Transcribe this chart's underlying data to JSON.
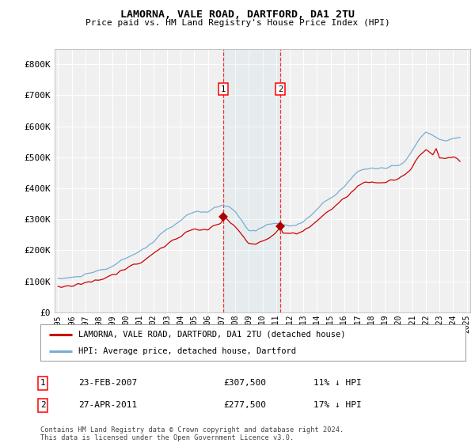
{
  "title": "LAMORNA, VALE ROAD, DARTFORD, DA1 2TU",
  "subtitle": "Price paid vs. HM Land Registry's House Price Index (HPI)",
  "bg_color": "#ffffff",
  "plot_bg_color": "#f0f0f0",
  "grid_color": "#ffffff",
  "hpi_color": "#7aadd4",
  "price_color": "#cc0000",
  "marker_color": "#aa0000",
  "sale1_date": "23-FEB-2007",
  "sale1_price": 307500,
  "sale1_label": "1",
  "sale1_hpi_pct": "11% ↓ HPI",
  "sale2_date": "27-APR-2011",
  "sale2_price": 277500,
  "sale2_label": "2",
  "sale2_hpi_pct": "17% ↓ HPI",
  "legend_line1": "LAMORNA, VALE ROAD, DARTFORD, DA1 2TU (detached house)",
  "legend_line2": "HPI: Average price, detached house, Dartford",
  "footnote": "Contains HM Land Registry data © Crown copyright and database right 2024.\nThis data is licensed under the Open Government Licence v3.0.",
  "sale1_x": 2007.12,
  "sale2_x": 2011.32,
  "ylim": [
    0,
    850000
  ],
  "yticks": [
    0,
    100000,
    200000,
    300000,
    400000,
    500000,
    600000,
    700000,
    800000
  ],
  "ytick_labels": [
    "£0",
    "£100K",
    "£200K",
    "£300K",
    "£400K",
    "£500K",
    "£600K",
    "£700K",
    "£800K"
  ],
  "xtick_years": [
    1995,
    1996,
    1997,
    1998,
    1999,
    2000,
    2001,
    2002,
    2003,
    2004,
    2005,
    2006,
    2007,
    2008,
    2009,
    2010,
    2011,
    2012,
    2013,
    2014,
    2015,
    2016,
    2017,
    2018,
    2019,
    2020,
    2021,
    2022,
    2023,
    2024,
    2025
  ]
}
